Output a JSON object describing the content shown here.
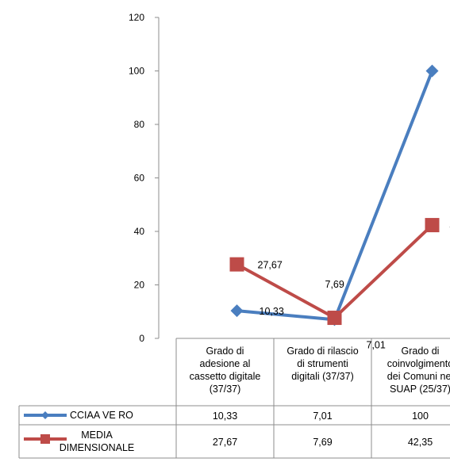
{
  "chart_data": {
    "type": "line",
    "categories": [
      [
        "Grado di",
        "adesione al",
        "cassetto digitale",
        "(37/37)"
      ],
      [
        "Grado di rilascio",
        "di strumenti",
        "digitali (37/37)"
      ],
      [
        "Grado di",
        "coinvolgimento",
        "dei Comuni nel",
        "SUAP (25/37)"
      ]
    ],
    "ylim": [
      0,
      120
    ],
    "yticks": [
      0,
      20,
      40,
      60,
      80,
      100,
      120
    ],
    "grid": false,
    "legend": "data-table",
    "series": [
      {
        "name": "CCIAA VE RO",
        "name_lines": [
          "CCIAA VE RO"
        ],
        "values": [
          10.33,
          7.01,
          100
        ],
        "labels": [
          "10,33",
          "7,01",
          "100"
        ],
        "color": "#4a7ebf",
        "marker": "diamond"
      },
      {
        "name": "MEDIA DIMENSIONALE",
        "name_lines": [
          "MEDIA",
          "DIMENSIONALE"
        ],
        "values": [
          27.67,
          7.69,
          42.35
        ],
        "labels": [
          "27,67",
          "7,69",
          "42,35"
        ],
        "color": "#be4b48",
        "marker": "square"
      }
    ]
  }
}
